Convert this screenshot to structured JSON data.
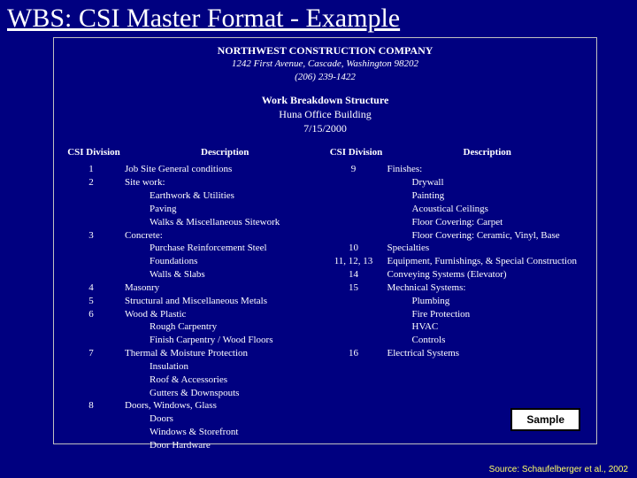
{
  "colors": {
    "background": "#000080",
    "text": "#ffffff",
    "box_border": "#c0c0c0",
    "sample_bg": "#ffffff",
    "sample_text": "#000000",
    "source_text": "#ffff66"
  },
  "title": "WBS: CSI Master Format - Example",
  "company": {
    "name": "NORTHWEST CONSTRUCTION COMPANY",
    "address": "1242 First Avenue, Cascade, Washington 98202",
    "phone": "(206) 239-1422"
  },
  "wbs": {
    "heading": "Work Breakdown Structure",
    "project": "Huna Office Building",
    "date": "7/15/2000"
  },
  "headers": {
    "division": "CSI Division",
    "description": "Description"
  },
  "left_rows": [
    {
      "div": "1",
      "desc": "Job Site General conditions"
    },
    {
      "div": "2",
      "desc": "Site work:"
    },
    {
      "div": "",
      "desc": "Earthwork & Utilities",
      "indent": true
    },
    {
      "div": "",
      "desc": "Paving",
      "indent": true
    },
    {
      "div": "",
      "desc": "Walks & Miscellaneous Sitework",
      "indent": true
    },
    {
      "div": "3",
      "desc": "Concrete:"
    },
    {
      "div": "",
      "desc": "Purchase Reinforcement Steel",
      "indent": true
    },
    {
      "div": "",
      "desc": "Foundations",
      "indent": true
    },
    {
      "div": "",
      "desc": "Walls & Slabs",
      "indent": true
    },
    {
      "div": "4",
      "desc": "Masonry"
    },
    {
      "div": "5",
      "desc": "Structural and Miscellaneous Metals"
    },
    {
      "div": "6",
      "desc": "Wood & Plastic"
    },
    {
      "div": "",
      "desc": "Rough Carpentry",
      "indent": true
    },
    {
      "div": "",
      "desc": "Finish Carpentry / Wood Floors",
      "indent": true
    },
    {
      "div": "7",
      "desc": "Thermal & Moisture Protection"
    },
    {
      "div": "",
      "desc": "Insulation",
      "indent": true
    },
    {
      "div": "",
      "desc": "Roof & Accessories",
      "indent": true
    },
    {
      "div": "",
      "desc": "Gutters & Downspouts",
      "indent": true
    },
    {
      "div": "8",
      "desc": "Doors, Windows, Glass"
    },
    {
      "div": "",
      "desc": "Doors",
      "indent": true
    },
    {
      "div": "",
      "desc": "Windows & Storefront",
      "indent": true
    },
    {
      "div": "",
      "desc": "Door Hardware",
      "indent": true
    }
  ],
  "right_rows": [
    {
      "div": "9",
      "desc": "Finishes:"
    },
    {
      "div": "",
      "desc": "Drywall",
      "indent": true
    },
    {
      "div": "",
      "desc": "Painting",
      "indent": true
    },
    {
      "div": "",
      "desc": "Acoustical Ceilings",
      "indent": true
    },
    {
      "div": "",
      "desc": "Floor Covering: Carpet",
      "indent": true
    },
    {
      "div": "",
      "desc": "Floor Covering: Ceramic, Vinyl, Base",
      "indent": true
    },
    {
      "div": "10",
      "desc": "Specialties"
    },
    {
      "div": "11, 12, 13",
      "desc": "Equipment, Furnishings, & Special Construction"
    },
    {
      "div": "14",
      "desc": "Conveying Systems (Elevator)"
    },
    {
      "div": "15",
      "desc": "Mechnical Systems:"
    },
    {
      "div": "",
      "desc": "Plumbing",
      "indent": true
    },
    {
      "div": "",
      "desc": "Fire Protection",
      "indent": true
    },
    {
      "div": "",
      "desc": "HVAC",
      "indent": true
    },
    {
      "div": "",
      "desc": "Controls",
      "indent": true
    },
    {
      "div": "16",
      "desc": "Electrical Systems"
    }
  ],
  "sample_label": "Sample",
  "source": "Source: Schaufelberger et al., 2002"
}
